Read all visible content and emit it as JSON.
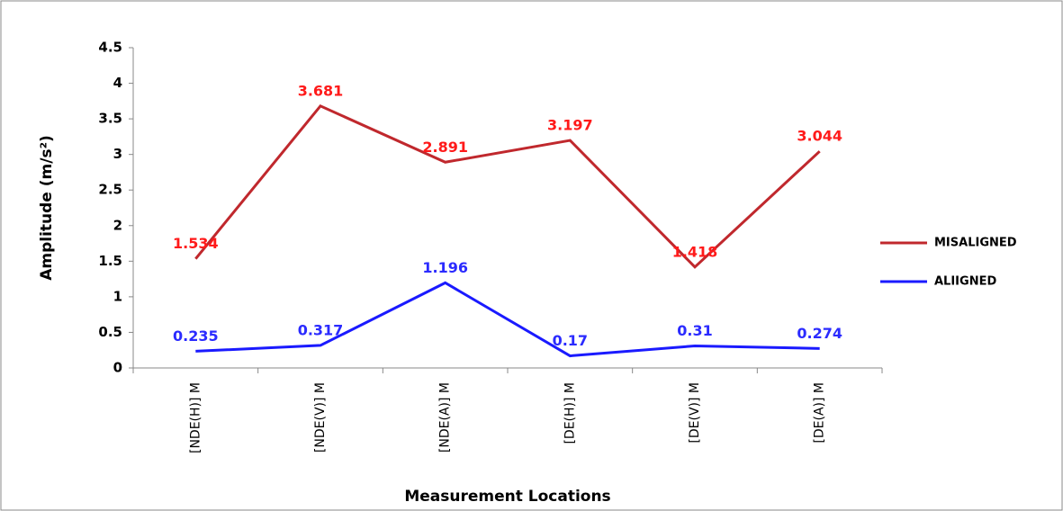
{
  "chart_data": {
    "type": "line",
    "x_label": "Measurement Locations",
    "y_label": "Amplitude (m/s²)",
    "categories": [
      "[NDE(H)] M",
      "[NDE(V)] M",
      "[NDE(A)] M",
      "[DE(H)] M",
      "[DE(V)] M",
      "[DE(A)] M"
    ],
    "series": [
      {
        "name": "MISALIGNED",
        "color": "#c0282d",
        "label_color": "#ff1a1a",
        "values": [
          1.534,
          3.681,
          2.891,
          3.197,
          1.418,
          3.044
        ]
      },
      {
        "name": "ALIIGNED",
        "color": "#1a1aff",
        "label_color": "#2b2bff",
        "values": [
          0.235,
          0.317,
          1.196,
          0.17,
          0.31,
          0.274
        ]
      }
    ],
    "ylim": [
      0,
      4.5
    ],
    "yticks": [
      0,
      0.5,
      1,
      1.5,
      2,
      2.5,
      3,
      3.5,
      4,
      4.5
    ],
    "grid": false,
    "legend": "right"
  }
}
